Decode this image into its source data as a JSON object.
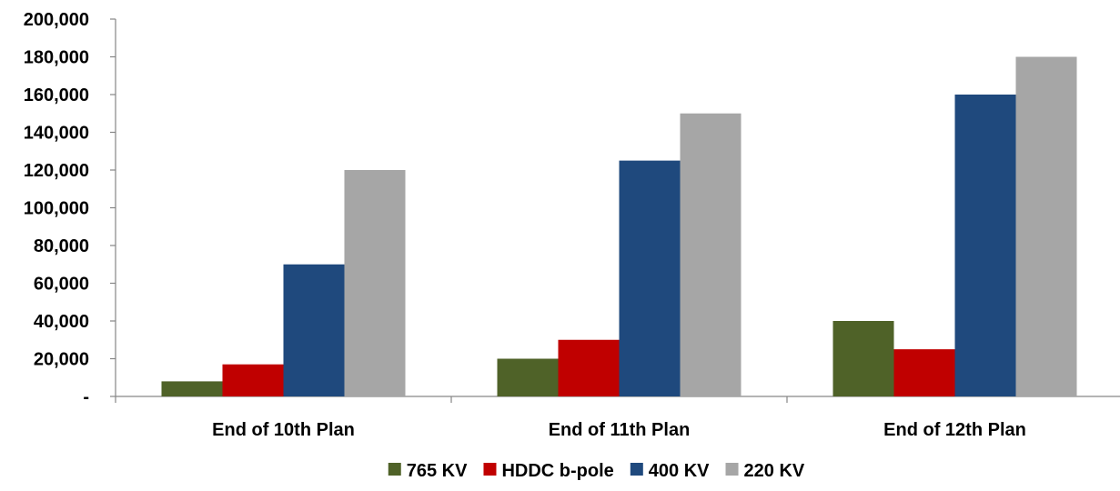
{
  "chart_data": {
    "type": "bar",
    "title": "",
    "xlabel": "",
    "ylabel": "",
    "categories": [
      "End of 10th Plan",
      "End of 11th Plan",
      "End of 12th Plan"
    ],
    "series": [
      {
        "name": "765 KV",
        "color": "#4f6228",
        "values": [
          8000,
          20000,
          40000
        ]
      },
      {
        "name": "HDDC b-pole",
        "color": "#c00000",
        "values": [
          17000,
          30000,
          25000
        ]
      },
      {
        "name": "400 KV",
        "color": "#1f497d",
        "values": [
          70000,
          125000,
          160000
        ]
      },
      {
        "name": "220 KV",
        "color": "#a6a6a6",
        "values": [
          120000,
          150000,
          180000
        ]
      }
    ],
    "ylim": [
      0,
      200000
    ],
    "y_ticks": [
      0,
      20000,
      40000,
      60000,
      80000,
      100000,
      120000,
      140000,
      160000,
      180000,
      200000
    ],
    "y_tick_labels": [
      "-",
      "20,000",
      "40,000",
      "60,000",
      "80,000",
      "100,000",
      "120,000",
      "140,000",
      "160,000",
      "180,000",
      "200,000"
    ],
    "grid": false,
    "legend_position": "bottom"
  }
}
